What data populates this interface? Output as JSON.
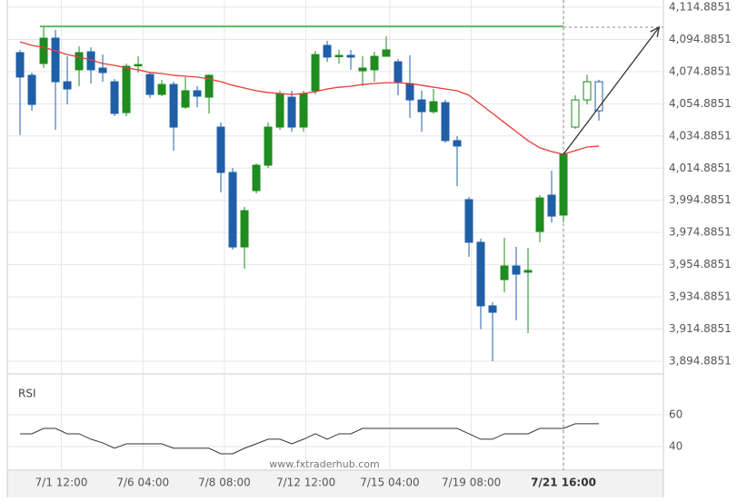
{
  "chart_data": {
    "type": "candlestick",
    "xlim": [
      -1.08,
      54.46
    ],
    "xticks": [
      {
        "value": 3.5,
        "label": "7/1 12:00"
      },
      {
        "value": 10.4,
        "label": "7/6 04:00"
      },
      {
        "value": 17.3,
        "label": "7/8 08:00"
      },
      {
        "value": 24.2,
        "label": "7/12 12:00"
      },
      {
        "value": 31.3,
        "label": "7/15 04:00"
      },
      {
        "value": 38.2,
        "label": "7/19 08:00"
      },
      {
        "value": 46,
        "label": "7/21 16:00"
      }
    ],
    "ylim": [
      3888.1,
      4119.4
    ],
    "yticks": [
      {
        "value": 4114.8851,
        "label": "4,114.8851"
      },
      {
        "value": 4094.8851,
        "label": "4,094.8851"
      },
      {
        "value": 4074.8851,
        "label": "4,074.8851"
      },
      {
        "value": 4054.8851,
        "label": "4,054.8851"
      },
      {
        "value": 4034.8851,
        "label": "4,034.8851"
      },
      {
        "value": 4014.8851,
        "label": "4,014.8851"
      },
      {
        "value": 3994.8851,
        "label": "3,994.8851"
      },
      {
        "value": 3974.8851,
        "label": "3,974.8851"
      },
      {
        "value": 3954.8851,
        "label": "3,954.8851"
      },
      {
        "value": 3934.8851,
        "label": "3,934.8851"
      },
      {
        "value": 3914.8851,
        "label": "3,914.8851"
      },
      {
        "value": 3894.8851,
        "label": "3,894.8851"
      }
    ],
    "grid": true,
    "up_color": "#1e8c1e",
    "down_color": "#1f5fa8",
    "hollow_from": 47,
    "open": [
      4086.7,
      4072.6,
      4079.9,
      4095.7,
      4068.6,
      4076,
      4087.2,
      4077.1,
      4068.6,
      4049.4,
      4078.7,
      4073.1,
      4060.7,
      4066.9,
      4052.8,
      4063,
      4059,
      4040.4,
      4012.2,
      3965.9,
      4000.9,
      4016.7,
      4040.4,
      4059,
      4040.4,
      4063,
      4091.2,
      4084.4,
      4085,
      4075.4,
      4076,
      4084.4,
      4081,
      4067.5,
      4057.3,
      4050,
      4055.6,
      4032,
      3995.3,
      3968.8,
      3929.3,
      3945.6,
      3954.1,
      3950.2,
      3975.5,
      3998.1,
      3985.7,
      4040.4,
      4057.3,
      4068.6
    ],
    "high": [
      4088.4,
      4074.3,
      4102.5,
      4100.8,
      4084.4,
      4090.6,
      4090,
      4085.5,
      4070.3,
      4079.9,
      4084.4,
      4074.3,
      4069.8,
      4068.6,
      4071.5,
      4065.8,
      4073.1,
      4043.3,
      4014.9,
      3990.8,
      4017.8,
      4043.3,
      4063,
      4063,
      4063,
      4087.8,
      4094,
      4088.4,
      4088.4,
      4084.4,
      4087.2,
      4096.8,
      4082.7,
      4085,
      4063,
      4064.1,
      4057.3,
      4034.8,
      3997,
      3971.1,
      3931.5,
      3971.6,
      3966,
      3965.4,
      3998.1,
      4013.2,
      4024.6,
      4060.2,
      4073.1,
      4069.8
    ],
    "low": [
      4035.5,
      4050.6,
      4077.1,
      4038.7,
      4054.5,
      4065.8,
      4067.5,
      4068.6,
      4047.2,
      4047.2,
      4074.3,
      4058.5,
      4059.6,
      4025.7,
      4051.7,
      4052.8,
      4048.9,
      3999.8,
      3964.3,
      3952.4,
      3999.2,
      4014.9,
      4038.7,
      4037.6,
      4037.6,
      4060.7,
      4081,
      4079.9,
      4076,
      4065.8,
      4068.6,
      4084.4,
      4060.2,
      4046.1,
      4037.6,
      4048.9,
      4030.8,
      4003.7,
      3959.7,
      3914.9,
      3894.9,
      3937.7,
      3920.3,
      3912.4,
      3968.8,
      3981.2,
      3981.2,
      4039.3,
      4054.5,
      4044.4
    ],
    "close": [
      4071.5,
      4054.5,
      4095.7,
      4068.6,
      4064.1,
      4086.7,
      4076,
      4074.3,
      4048.9,
      4078.2,
      4079.3,
      4060.7,
      4066.9,
      4040.4,
      4063,
      4059.6,
      4072.6,
      4012.2,
      3965.9,
      3988.5,
      4016.7,
      4040.4,
      4061.3,
      4040.4,
      4061.3,
      4085.5,
      4083.9,
      4085,
      4083.9,
      4077.1,
      4084.4,
      4088.4,
      4068.6,
      4057.3,
      4050,
      4056.2,
      4032,
      4028.6,
      3968.8,
      3929.3,
      3925.3,
      3954.1,
      3949,
      3951.3,
      3996.4,
      3985.1,
      4023.5,
      4057.3,
      4068.6,
      4050.5
    ],
    "ma": {
      "color": "#e83a3a",
      "values": [
        4093.4,
        4091.2,
        4090,
        4087.8,
        4085.5,
        4083.9,
        4082.2,
        4079.9,
        4078.8,
        4077.1,
        4076,
        4074.3,
        4073.7,
        4072.6,
        4072,
        4071.5,
        4070.3,
        4068.6,
        4066.4,
        4064.7,
        4063,
        4061.9,
        4061.3,
        4060.7,
        4061.3,
        4062.4,
        4064.1,
        4065.2,
        4065.8,
        4066.9,
        4067.5,
        4068,
        4068,
        4067.5,
        4066.4,
        4065.2,
        4064.1,
        4063,
        4060.2,
        4054.5,
        4048.9,
        4043.2,
        4037.6,
        4032,
        4027.5,
        4025.2,
        4023.5,
        4025.8,
        4028,
        4028.6
      ]
    },
    "resistance": {
      "value": 4103.0,
      "from": 2,
      "color": "#5cb85c"
    },
    "projection": {
      "from": {
        "x": 46,
        "y": 4023.5
      },
      "to": {
        "x": 54.1,
        "y": 4102.5
      },
      "color": "#333333"
    },
    "rsi": {
      "label": "RSI",
      "color": "#333333",
      "ylim": [
        25.1,
        84
      ],
      "yticks": [
        60,
        40
      ],
      "values": [
        48,
        48,
        51.4,
        51.4,
        48,
        48,
        44.6,
        42.3,
        38.9,
        41.7,
        41.7,
        41.7,
        41.7,
        38.9,
        38.9,
        38.9,
        38.9,
        35.4,
        35.4,
        38.9,
        41.7,
        44.6,
        44.6,
        41.7,
        44.6,
        48,
        44.6,
        48,
        48,
        51.4,
        51.4,
        51.4,
        51.4,
        51.4,
        51.4,
        51.4,
        51.4,
        51.4,
        48,
        44.6,
        44.6,
        48,
        48,
        48,
        51.4,
        51.4,
        51.4,
        54.3,
        54.3,
        54.3
      ]
    },
    "watermark": "www.fxtraderhub.com"
  }
}
